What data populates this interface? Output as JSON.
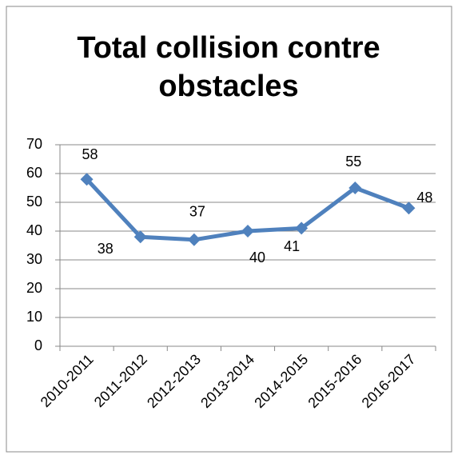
{
  "chart_data": {
    "type": "line",
    "title": "Total collision contre obstacles",
    "categories": [
      "2010-2011",
      "2011-2012",
      "2012-2013",
      "2013-2014",
      "2014-2015",
      "2015-2016",
      "2016-2017"
    ],
    "values": [
      58,
      38,
      37,
      40,
      41,
      55,
      48
    ],
    "color": "#4f81bd",
    "ylim": [
      0,
      70
    ],
    "yticks": [
      0,
      10,
      20,
      30,
      40,
      50,
      60,
      70
    ],
    "grid": true
  }
}
